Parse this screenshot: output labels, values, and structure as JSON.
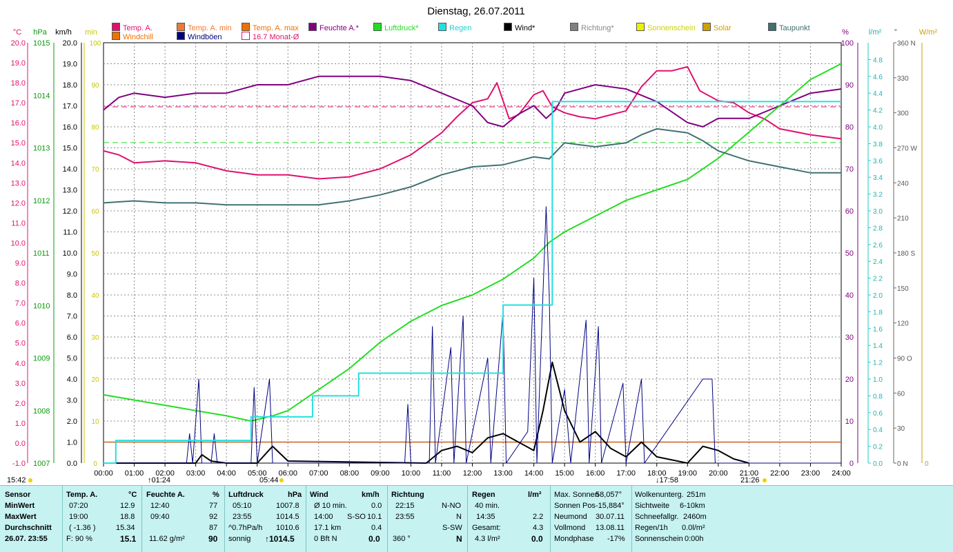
{
  "title": "Dienstag, 26.07.2011",
  "legend": [
    {
      "label": "Temp. A.",
      "color": "#e0106e"
    },
    {
      "label": "Temp. A. min",
      "color": "#f07830"
    },
    {
      "label": "Temp. A. max",
      "color": "#f07000"
    },
    {
      "label": "Feuchte A.*",
      "color": "#800080"
    },
    {
      "label": "Luftdruck*",
      "color": "#22dd22"
    },
    {
      "label": "Regen",
      "color": "#22e0e0"
    },
    {
      "label": "Wind*",
      "color": "#000000"
    },
    {
      "label": "Richtung*",
      "color": "#808080"
    },
    {
      "label": "Sonnenschein",
      "color": "#f0f000"
    },
    {
      "label": "Solar",
      "color": "#d0a000"
    },
    {
      "label": "Taupunkt",
      "color": "#407070"
    },
    {
      "label": "Windchill",
      "color": "#f07000"
    },
    {
      "label": "Windböen",
      "color": "#000080"
    },
    {
      "label": "16.7 Monat-Ø",
      "color": "#ffffff"
    }
  ],
  "axis_units": {
    "temp": "°C",
    "pressure": "hPa",
    "wind": "km/h",
    "sun": "min",
    "humidity": "%",
    "rain": "l/m²",
    "dir": "°",
    "solar": "W/m²"
  },
  "sun_marks": {
    "rise": "05:44",
    "set": "21:26",
    "left_time": "15:42",
    "moon1": "01:24",
    "moon2": "17:58"
  },
  "chart_data": {
    "type": "line",
    "title": "Dienstag, 26.07.2011",
    "x_ticks": [
      "00:00",
      "01:00",
      "02:00",
      "03:00",
      "04:00",
      "05:00",
      "06:00",
      "07:00",
      "08:00",
      "09:00",
      "10:00",
      "11:00",
      "12:00",
      "13:00",
      "14:00",
      "15:00",
      "16:00",
      "17:00",
      "18:00",
      "19:00",
      "20:00",
      "21:00",
      "22:00",
      "23:00",
      "24:00"
    ],
    "axes": {
      "temp": {
        "min": -1.0,
        "max": 20.0,
        "ticks": [
          "-1.0",
          "0.0",
          "1.0",
          "2.0",
          "3.0",
          "4.0",
          "5.0",
          "6.0",
          "7.0",
          "8.0",
          "9.0",
          "10.0",
          "11.0",
          "12.0",
          "13.0",
          "14.0",
          "15.0",
          "16.0",
          "17.0",
          "18.0",
          "19.0",
          "20.0"
        ]
      },
      "pressure": {
        "min": 1007,
        "max": 1015,
        "ticks": [
          "1007",
          "1008",
          "1009",
          "1010",
          "1011",
          "1012",
          "1013",
          "1014",
          "1015"
        ]
      },
      "wind": {
        "min": 0.0,
        "max": 20.0,
        "ticks": [
          "0.0",
          "1.0",
          "2.0",
          "3.0",
          "4.0",
          "5.0",
          "6.0",
          "7.0",
          "8.0",
          "9.0",
          "10.0",
          "11.0",
          "12.0",
          "13.0",
          "14.0",
          "15.0",
          "16.0",
          "17.0",
          "18.0",
          "19.0",
          "20.0"
        ]
      },
      "humidity": {
        "min": 0,
        "max": 100,
        "ticks": [
          "0",
          "10",
          "20",
          "30",
          "40",
          "50",
          "60",
          "70",
          "80",
          "90",
          "100"
        ]
      },
      "rain": {
        "min": 0.0,
        "max": 5.0,
        "ticks": [
          "0.0",
          "0.2",
          "0.4",
          "0.6",
          "0.8",
          "1.0",
          "1.2",
          "1.4",
          "1.6",
          "1.8",
          "2.0",
          "2.2",
          "2.4",
          "2.6",
          "2.8",
          "3.0",
          "3.2",
          "3.4",
          "3.6",
          "3.8",
          "4.0",
          "4.2",
          "4.4",
          "4.6",
          "4.8"
        ]
      },
      "dir": {
        "min": 0,
        "max": 360,
        "ticks": [
          "0 N",
          "30",
          "60",
          "90 O",
          "120",
          "150",
          "180 S",
          "210",
          "240",
          "270 W",
          "300",
          "330",
          "360 N"
        ]
      },
      "solar": {
        "ticks": [
          "0"
        ]
      }
    },
    "series": [
      {
        "name": "Temp. A.",
        "axis": "temp",
        "color": "#e0106e",
        "points": [
          [
            0,
            14.6
          ],
          [
            0.5,
            14.4
          ],
          [
            1,
            14.0
          ],
          [
            2,
            14.1
          ],
          [
            3,
            14.0
          ],
          [
            4,
            13.6
          ],
          [
            5,
            13.4
          ],
          [
            6,
            13.4
          ],
          [
            7,
            13.2
          ],
          [
            8,
            13.3
          ],
          [
            9,
            13.7
          ],
          [
            10,
            14.4
          ],
          [
            11,
            15.5
          ],
          [
            11.5,
            16.3
          ],
          [
            12,
            17.0
          ],
          [
            12.5,
            17.2
          ],
          [
            12.8,
            18.0
          ],
          [
            13.2,
            16.2
          ],
          [
            13.5,
            16.4
          ],
          [
            14,
            17.4
          ],
          [
            14.3,
            17.6
          ],
          [
            14.6,
            16.8
          ],
          [
            15,
            16.5
          ],
          [
            15.5,
            16.3
          ],
          [
            16,
            16.2
          ],
          [
            16.5,
            16.4
          ],
          [
            17,
            16.6
          ],
          [
            17.5,
            17.8
          ],
          [
            18,
            18.6
          ],
          [
            18.5,
            18.6
          ],
          [
            19,
            18.8
          ],
          [
            19.4,
            17.6
          ],
          [
            20,
            17.1
          ],
          [
            20.5,
            17.0
          ],
          [
            21,
            16.5
          ],
          [
            21.5,
            16.2
          ],
          [
            22,
            15.7
          ],
          [
            23,
            15.4
          ],
          [
            24,
            15.2
          ]
        ]
      },
      {
        "name": "Feuchte A.*",
        "axis": "humidity",
        "color": "#800080",
        "points": [
          [
            0,
            84
          ],
          [
            0.5,
            87
          ],
          [
            1,
            88
          ],
          [
            2,
            87
          ],
          [
            3,
            88
          ],
          [
            4,
            88
          ],
          [
            5,
            90
          ],
          [
            6,
            90
          ],
          [
            7,
            92
          ],
          [
            8,
            92
          ],
          [
            9,
            92
          ],
          [
            10,
            91
          ],
          [
            11,
            88
          ],
          [
            12,
            85
          ],
          [
            12.5,
            81
          ],
          [
            13,
            80
          ],
          [
            13.5,
            83
          ],
          [
            14,
            85
          ],
          [
            14.4,
            82
          ],
          [
            14.7,
            84
          ],
          [
            15,
            88
          ],
          [
            16,
            90
          ],
          [
            17,
            89
          ],
          [
            18,
            86
          ],
          [
            19,
            81
          ],
          [
            19.5,
            80
          ],
          [
            20,
            82
          ],
          [
            21,
            82
          ],
          [
            22,
            85
          ],
          [
            23,
            88
          ],
          [
            24,
            89
          ]
        ]
      },
      {
        "name": "Luftdruck*",
        "axis": "pressure",
        "color": "#22dd22",
        "points": [
          [
            0,
            1008.3
          ],
          [
            1,
            1008.2
          ],
          [
            2,
            1008.1
          ],
          [
            3,
            1008.0
          ],
          [
            4,
            1007.9
          ],
          [
            4.8,
            1007.8
          ],
          [
            5.5,
            1007.9
          ],
          [
            6,
            1008.0
          ],
          [
            7,
            1008.4
          ],
          [
            8,
            1008.8
          ],
          [
            9,
            1009.3
          ],
          [
            10,
            1009.7
          ],
          [
            11,
            1010.0
          ],
          [
            12,
            1010.2
          ],
          [
            13,
            1010.5
          ],
          [
            14,
            1010.9
          ],
          [
            14.5,
            1011.2
          ],
          [
            15,
            1011.4
          ],
          [
            16,
            1011.7
          ],
          [
            17,
            1012.0
          ],
          [
            18,
            1012.2
          ],
          [
            19,
            1012.4
          ],
          [
            20,
            1012.8
          ],
          [
            21,
            1013.3
          ],
          [
            22,
            1013.8
          ],
          [
            23,
            1014.3
          ],
          [
            24,
            1014.6
          ]
        ]
      },
      {
        "name": "Taupunkt",
        "axis": "temp",
        "color": "#407070",
        "points": [
          [
            0,
            12.0
          ],
          [
            1,
            12.1
          ],
          [
            2,
            12.0
          ],
          [
            3,
            12.0
          ],
          [
            4,
            11.9
          ],
          [
            5,
            11.9
          ],
          [
            6,
            11.9
          ],
          [
            7,
            11.9
          ],
          [
            8,
            12.1
          ],
          [
            9,
            12.4
          ],
          [
            10,
            12.8
          ],
          [
            11,
            13.4
          ],
          [
            12,
            13.8
          ],
          [
            13,
            13.9
          ],
          [
            14,
            14.3
          ],
          [
            14.5,
            14.2
          ],
          [
            15,
            15.0
          ],
          [
            16,
            14.8
          ],
          [
            17,
            15.0
          ],
          [
            17.5,
            15.4
          ],
          [
            18,
            15.7
          ],
          [
            19,
            15.5
          ],
          [
            19.5,
            15.1
          ],
          [
            20,
            14.6
          ],
          [
            21,
            14.1
          ],
          [
            22,
            13.8
          ],
          [
            23,
            13.5
          ],
          [
            24,
            13.5
          ]
        ]
      },
      {
        "name": "Wind*",
        "axis": "wind",
        "color": "#000000",
        "points": [
          [
            0,
            0
          ],
          [
            3,
            0
          ],
          [
            3.2,
            0.4
          ],
          [
            3.5,
            0.1
          ],
          [
            4,
            0
          ],
          [
            5,
            0
          ],
          [
            5.5,
            0.8
          ],
          [
            6,
            0.1
          ],
          [
            10.5,
            0
          ],
          [
            11,
            0.6
          ],
          [
            11.5,
            0.8
          ],
          [
            12,
            0.5
          ],
          [
            12.5,
            1.2
          ],
          [
            13,
            1.4
          ],
          [
            13.5,
            1.0
          ],
          [
            14,
            0.6
          ],
          [
            14.3,
            2.5
          ],
          [
            14.6,
            4.8
          ],
          [
            15,
            2.5
          ],
          [
            15.5,
            1.0
          ],
          [
            16,
            1.5
          ],
          [
            16.5,
            0.7
          ],
          [
            17,
            0.3
          ],
          [
            17.5,
            1.0
          ],
          [
            18,
            0.3
          ],
          [
            19,
            0
          ],
          [
            19.5,
            0.8
          ],
          [
            20,
            0.6
          ],
          [
            20.5,
            0.2
          ],
          [
            21,
            0
          ]
        ]
      },
      {
        "name": "Windböen",
        "axis": "wind",
        "color": "#000080",
        "points": [
          [
            0,
            0
          ],
          [
            2.7,
            0
          ],
          [
            2.8,
            1.4
          ],
          [
            2.9,
            0
          ],
          [
            3.1,
            4.0
          ],
          [
            3.2,
            0
          ],
          [
            3.5,
            0
          ],
          [
            3.6,
            1.4
          ],
          [
            3.7,
            0
          ],
          [
            4.8,
            0
          ],
          [
            4.9,
            3.6
          ],
          [
            5.0,
            0
          ],
          [
            5.4,
            4.0
          ],
          [
            5.5,
            0
          ],
          [
            9.8,
            0
          ],
          [
            9.9,
            2.8
          ],
          [
            10.0,
            0
          ],
          [
            10.6,
            0
          ],
          [
            10.7,
            6.5
          ],
          [
            10.8,
            0
          ],
          [
            11.3,
            5.5
          ],
          [
            11.4,
            0
          ],
          [
            11.7,
            7.0
          ],
          [
            11.8,
            0
          ],
          [
            12.5,
            5.0
          ],
          [
            12.6,
            0
          ],
          [
            13.0,
            7.2
          ],
          [
            13.1,
            0
          ],
          [
            13.8,
            1.5
          ],
          [
            14.0,
            8.8
          ],
          [
            14.1,
            0
          ],
          [
            14.4,
            12.2
          ],
          [
            14.5,
            8.0
          ],
          [
            14.6,
            0
          ],
          [
            15.0,
            3.5
          ],
          [
            15.2,
            0
          ],
          [
            15.7,
            6.8
          ],
          [
            15.8,
            0
          ],
          [
            16.1,
            6.5
          ],
          [
            16.2,
            0
          ],
          [
            16.9,
            3.8
          ],
          [
            17.0,
            0
          ],
          [
            17.5,
            4.0
          ],
          [
            17.6,
            0
          ],
          [
            19.5,
            4.0
          ],
          [
            19.8,
            4.0
          ],
          [
            19.9,
            0
          ],
          [
            24,
            0
          ]
        ]
      },
      {
        "name": "Regen",
        "axis": "rain",
        "color": "#22e0e0",
        "step": true,
        "points": [
          [
            0,
            0
          ],
          [
            0.4,
            0.27
          ],
          [
            4.8,
            0.27
          ],
          [
            4.8,
            0.55
          ],
          [
            6.8,
            0.55
          ],
          [
            6.8,
            0.8
          ],
          [
            8.3,
            0.8
          ],
          [
            8.3,
            1.07
          ],
          [
            13.0,
            1.07
          ],
          [
            13.0,
            1.88
          ],
          [
            14.5,
            1.88
          ],
          [
            14.6,
            4.3
          ],
          [
            24,
            4.3
          ]
        ]
      }
    ],
    "hlines": [
      {
        "axis": "temp",
        "value": 16.8,
        "color": "#e0106e"
      },
      {
        "axis": "pressure",
        "value": 1013.1,
        "color": "#22dd22"
      },
      {
        "axis": "wind",
        "value": 1.0,
        "color": "#c86020"
      }
    ]
  },
  "table": {
    "sensor": {
      "h": "Sensor",
      "r1": "MinWert",
      "r2": "MaxWert",
      "r3": "Durchschnitt",
      "r4": "26.07. 23:55"
    },
    "temp": {
      "h": "Temp. A.",
      "u": "°C",
      "r1a": "07:20",
      "r1b": "12.9",
      "r2a": "19:00",
      "r2b": "18.8",
      "r3a": "( -1.36 )",
      "r3b": "15.34",
      "r4a": "F: 90 %",
      "r4b": "15.1"
    },
    "hum": {
      "h": "Feuchte A.",
      "u": "%",
      "r1a": "12:40",
      "r1b": "77",
      "r2a": "09:40",
      "r2b": "92",
      "r3b": "87",
      "r4a": "11.62 g/m²",
      "r4b": "90"
    },
    "press": {
      "h": "Luftdruck",
      "u": "hPa",
      "r1a": "05:10",
      "r1b": "1007.8",
      "r2a": "23:55",
      "r2b": "1014.5",
      "r3a": "^0.7hPa/h",
      "r3b": "1010.6",
      "r4a": "sonnig",
      "r4b": "↑1014.5"
    },
    "wind": {
      "h": "Wind",
      "u": "km/h",
      "r1a": "Ø 10 min.",
      "r1b": "0.0",
      "r2a": "14:00",
      "r2m": "S-SO",
      "r2b": "10.1",
      "r3a": "17.1 km",
      "r3b": "0.4",
      "r4a": "0 Bft N",
      "r4b": "0.0"
    },
    "dir": {
      "h": "Richtung",
      "r1a": "22:15",
      "r1b": "N-NO",
      "r2a": "23:55",
      "r2b": "N",
      "r3b": "S-SW",
      "r4a": "360 °",
      "r4b": "N"
    },
    "rain": {
      "h": "Regen",
      "u": "l/m²",
      "r1a": "40 min.",
      "r2a": "14:35",
      "r2b": "2.2",
      "r3a": "Gesamt:",
      "r3b": "4.3",
      "r4a": "4.3 l/m²",
      "r4b": "0.0"
    },
    "sun": {
      "r1a": "Max. Sonnen",
      "r1b": "58,057°",
      "r2a": "Sonnen Pos",
      "r2b": "-15,884°",
      "r3a": "Neumond",
      "r3b": "30.07.11",
      "r4a": "Vollmond",
      "r4b": "13.08.11",
      "r5a": "Mondphase",
      "r5b": "-17%"
    },
    "misc": {
      "r1a": "Wolkenunterg.",
      "r1b": "251m",
      "r2a": "Sichtweite",
      "r2b": "6-10km",
      "r3a": "Schneefallgr.",
      "r3b": "2460m",
      "r4a": "Regen/1h",
      "r4b": "0.0l/m²",
      "r5a": "Sonnenschein",
      "r5b": "0:00h"
    }
  }
}
